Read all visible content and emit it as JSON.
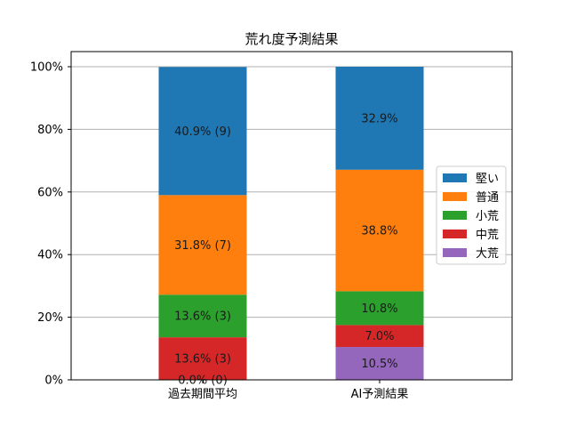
{
  "chart_data": {
    "type": "bar",
    "stacked": true,
    "title": "荒れ度予測結果",
    "xlabel": "",
    "ylabel": "",
    "ylim": [
      0,
      100
    ],
    "y_ticks": [
      "0%",
      "20%",
      "40%",
      "60%",
      "80%",
      "100%"
    ],
    "y_tick_values": [
      0,
      20,
      40,
      60,
      80,
      100
    ],
    "grid": "horizontal",
    "legend_position": "right",
    "categories": [
      "過去期間平均",
      "AI予測結果"
    ],
    "series": [
      {
        "name": "大荒",
        "color": "#9467bd",
        "values": [
          0.0,
          10.5
        ],
        "labels": [
          "0.0% (0)",
          "10.5%"
        ]
      },
      {
        "name": "中荒",
        "color": "#d62728",
        "values": [
          13.6,
          7.0
        ],
        "labels": [
          "13.6% (3)",
          "7.0%"
        ]
      },
      {
        "name": "小荒",
        "color": "#2ca02c",
        "values": [
          13.6,
          10.8
        ],
        "labels": [
          "13.6% (3)",
          "10.8%"
        ]
      },
      {
        "name": "普通",
        "color": "#ff7f0e",
        "values": [
          31.8,
          38.8
        ],
        "labels": [
          "31.8% (7)",
          "38.8%"
        ]
      },
      {
        "name": "堅い",
        "color": "#1f77b4",
        "values": [
          40.9,
          32.9
        ],
        "labels": [
          "40.9% (9)",
          "32.9%"
        ]
      }
    ],
    "legend_order": [
      "堅い",
      "普通",
      "小荒",
      "中荒",
      "大荒"
    ]
  }
}
